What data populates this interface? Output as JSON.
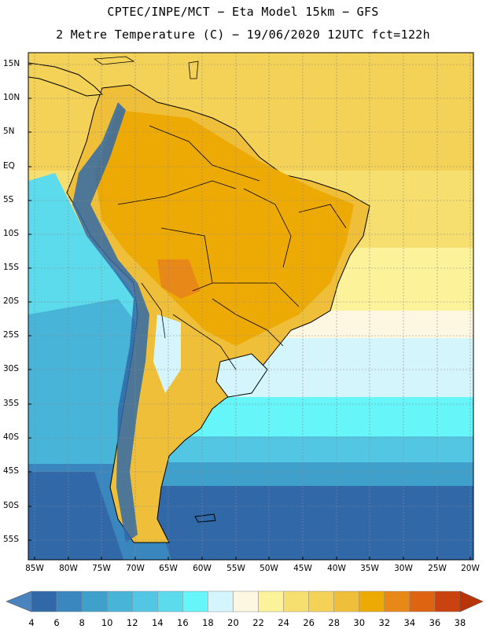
{
  "title": {
    "line1": "CPTEC/INPE/MCT −  Eta Model 15km − GFS",
    "line2": "2 Metre Temperature (C) − 19/06/2020 12UTC fct=122h"
  },
  "map": {
    "lat_labels": [
      "15N",
      "10N",
      "5N",
      "EQ",
      "5S",
      "10S",
      "15S",
      "20S",
      "25S",
      "30S",
      "35S",
      "40S",
      "45S",
      "50S",
      "55S"
    ],
    "lon_labels": [
      "85W",
      "80W",
      "75W",
      "70W",
      "65W",
      "60W",
      "55W",
      "50W",
      "45W",
      "40W",
      "35W",
      "30W",
      "25W",
      "20W"
    ]
  },
  "colorbar": {
    "labels": [
      "4",
      "6",
      "8",
      "10",
      "12",
      "14",
      "16",
      "18",
      "20",
      "22",
      "24",
      "26",
      "28",
      "30",
      "32",
      "34",
      "36",
      "38"
    ],
    "colors": [
      "#4a83be",
      "#3068a8",
      "#3a86bf",
      "#3fa0cc",
      "#47b4d8",
      "#52c6e2",
      "#5cdbec",
      "#66f5f8",
      "#d4f5fc",
      "#fdf7e2",
      "#fcf29a",
      "#f6df6e",
      "#f4d157",
      "#efbf3a",
      "#eeaa04",
      "#e88818",
      "#de6412",
      "#c94210",
      "#b93408"
    ]
  }
}
